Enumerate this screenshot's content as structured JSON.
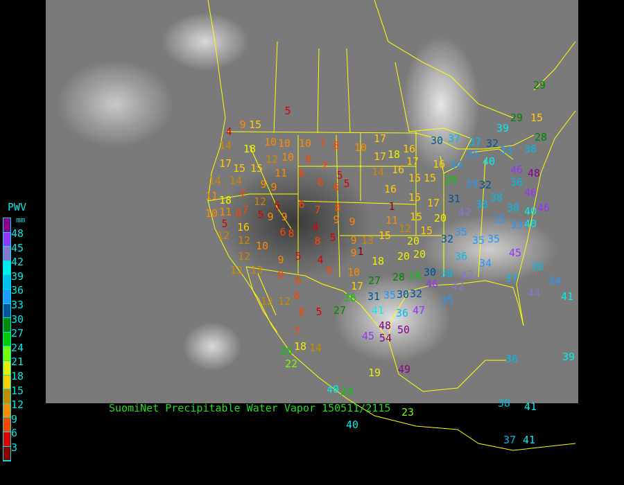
{
  "title": "SuomiNet Precipitable Water Vapor 150511/2115",
  "legend": {
    "title": "PWV",
    "unit": "mm",
    "labels": [
      "48",
      "45",
      "42",
      "39",
      "36",
      "33",
      "30",
      "27",
      "24",
      "21",
      "18",
      "15",
      "12",
      "9",
      "6",
      "3"
    ],
    "colors": [
      "#8b008b",
      "#9933ff",
      "#8877cc",
      "#00eeee",
      "#00bbee",
      "#2299ff",
      "#005599",
      "#008800",
      "#00cc00",
      "#77ff00",
      "#eeee00",
      "#ffcc00",
      "#cc8800",
      "#ff8800",
      "#ff4400",
      "#dd0000",
      "#880000"
    ]
  },
  "map": {
    "background": "GOES infrared satellite image",
    "boundary_color": "#ffff00"
  },
  "stations": [
    5,
    9,
    15,
    4,
    14,
    18,
    10,
    10,
    10,
    7,
    8,
    10,
    17,
    17,
    18,
    16,
    30,
    37,
    37,
    17,
    15,
    15,
    12,
    10,
    6,
    7,
    5,
    14,
    16,
    17,
    16,
    34,
    35,
    14,
    14,
    9,
    11,
    6,
    6,
    6,
    5,
    16,
    15,
    15,
    26,
    33,
    18,
    7,
    12,
    9,
    11,
    11,
    10,
    6,
    7,
    5,
    6,
    7,
    8,
    1,
    15,
    17,
    31,
    42,
    38,
    5,
    16,
    5,
    9,
    9,
    4,
    9,
    9,
    11,
    15,
    15,
    20,
    12,
    12,
    10,
    6,
    8,
    8,
    5,
    9,
    13,
    15,
    12,
    20,
    32,
    35,
    35,
    35,
    35,
    33,
    38,
    40,
    12,
    13,
    9,
    5,
    4,
    9,
    10,
    1,
    20,
    20,
    30,
    24,
    36,
    34,
    45,
    12,
    8,
    6,
    6,
    17,
    27,
    18,
    28,
    32,
    38,
    26,
    31,
    35,
    36,
    46,
    43,
    42,
    12,
    12,
    6,
    27,
    41,
    47,
    30,
    35,
    37,
    36,
    34,
    41,
    44,
    8,
    5,
    48,
    50,
    7,
    54,
    45,
    18,
    14,
    25,
    22,
    19,
    49,
    40,
    24,
    40,
    23,
    38,
    41,
    36,
    39,
    37,
    41,
    46,
    48,
    46,
    36,
    33,
    40,
    39,
    29,
    29,
    15,
    28,
    38,
    32,
    46,
    38,
    32,
    40
  ]
}
